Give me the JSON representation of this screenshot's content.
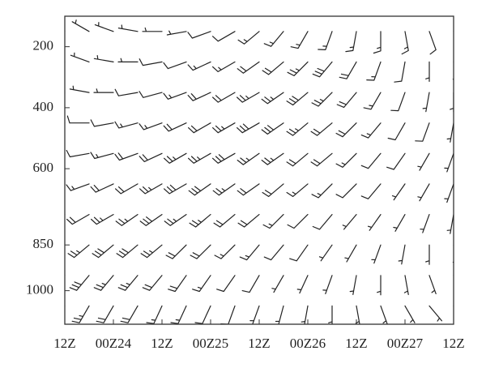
{
  "chart_data": {
    "type": "barbs",
    "color": "#222222",
    "xlim": [
      0,
      96
    ],
    "xticks": [
      {
        "value": 0,
        "label": "12Z"
      },
      {
        "value": 12,
        "label": "00Z24"
      },
      {
        "value": 24,
        "label": "12Z"
      },
      {
        "value": 36,
        "label": "00Z25"
      },
      {
        "value": 48,
        "label": "12Z"
      },
      {
        "value": 60,
        "label": "00Z26"
      },
      {
        "value": 72,
        "label": "12Z"
      },
      {
        "value": 84,
        "label": "00Z27"
      },
      {
        "value": 96,
        "label": "12Z"
      }
    ],
    "ylim": [
      1110,
      100
    ],
    "yticks": [
      200,
      400,
      600,
      850,
      1000
    ],
    "times": [
      0,
      6,
      12,
      18,
      24,
      30,
      36,
      42,
      48,
      54,
      60,
      66,
      72,
      78,
      84,
      90,
      96
    ],
    "levels": [
      150,
      250,
      350,
      450,
      550,
      650,
      750,
      850,
      950,
      1050
    ],
    "speed": [
      [
        5,
        5,
        5,
        5,
        5,
        5,
        10,
        10,
        15,
        15,
        15,
        15,
        15,
        15,
        15,
        10,
        10
      ],
      [
        5,
        5,
        5,
        5,
        10,
        10,
        15,
        15,
        20,
        20,
        25,
        30,
        20,
        15,
        10,
        5,
        5
      ],
      [
        5,
        5,
        5,
        10,
        10,
        15,
        20,
        20,
        25,
        25,
        30,
        25,
        20,
        15,
        10,
        5,
        5
      ],
      [
        5,
        10,
        10,
        15,
        15,
        20,
        20,
        25,
        30,
        30,
        25,
        20,
        20,
        15,
        10,
        10,
        5
      ],
      [
        10,
        10,
        15,
        20,
        20,
        25,
        25,
        30,
        25,
        25,
        20,
        20,
        15,
        10,
        10,
        5,
        5
      ],
      [
        15,
        15,
        20,
        20,
        25,
        30,
        30,
        25,
        20,
        20,
        15,
        15,
        10,
        10,
        5,
        5,
        5
      ],
      [
        20,
        20,
        25,
        25,
        30,
        25,
        25,
        20,
        20,
        15,
        10,
        10,
        5,
        5,
        5,
        5,
        5
      ],
      [
        20,
        25,
        30,
        30,
        25,
        20,
        20,
        15,
        15,
        10,
        10,
        5,
        5,
        5,
        5,
        5,
        5
      ],
      [
        25,
        30,
        25,
        25,
        20,
        20,
        15,
        10,
        10,
        5,
        5,
        5,
        5,
        5,
        5,
        5,
        5
      ],
      [
        30,
        25,
        20,
        20,
        15,
        15,
        10,
        10,
        5,
        5,
        5,
        5,
        5,
        5,
        5,
        5,
        5
      ]
    ],
    "direction": [
      [
        300,
        300,
        290,
        280,
        270,
        260,
        250,
        240,
        230,
        220,
        210,
        200,
        190,
        180,
        170,
        160,
        160
      ],
      [
        290,
        290,
        280,
        270,
        260,
        250,
        245,
        240,
        235,
        230,
        225,
        220,
        210,
        200,
        190,
        180,
        170
      ],
      [
        280,
        280,
        270,
        260,
        255,
        250,
        245,
        240,
        240,
        235,
        230,
        225,
        220,
        210,
        200,
        190,
        180
      ],
      [
        270,
        270,
        260,
        255,
        250,
        245,
        240,
        240,
        240,
        235,
        230,
        230,
        225,
        220,
        210,
        200,
        190
      ],
      [
        260,
        260,
        255,
        250,
        245,
        240,
        240,
        240,
        235,
        235,
        230,
        230,
        225,
        220,
        215,
        210,
        200
      ],
      [
        250,
        250,
        245,
        240,
        240,
        240,
        235,
        235,
        235,
        230,
        230,
        225,
        225,
        220,
        215,
        210,
        200
      ],
      [
        240,
        240,
        240,
        235,
        235,
        235,
        230,
        230,
        230,
        225,
        225,
        220,
        220,
        215,
        210,
        200,
        190
      ],
      [
        230,
        230,
        230,
        230,
        230,
        225,
        225,
        225,
        220,
        220,
        215,
        215,
        210,
        200,
        190,
        180,
        170
      ],
      [
        220,
        220,
        220,
        220,
        220,
        215,
        215,
        215,
        210,
        210,
        205,
        200,
        190,
        180,
        170,
        160,
        150
      ],
      [
        210,
        210,
        210,
        210,
        205,
        205,
        205,
        200,
        200,
        195,
        190,
        180,
        170,
        160,
        150,
        140,
        130
      ]
    ]
  }
}
